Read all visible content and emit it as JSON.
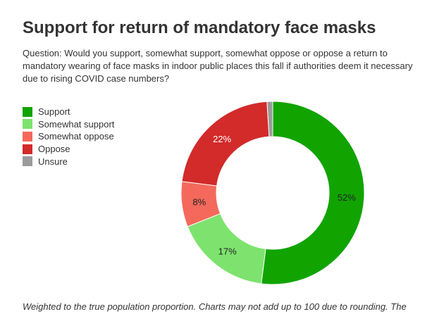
{
  "chart_data": {
    "type": "pie",
    "title": "Support for return of mandatory face masks",
    "subtitle": "Question: Would you support, somewhat support, somewhat oppose or oppose a return to mandatory wearing of face masks in indoor public places this fall if authorities deem it necessary due to rising COVID case numbers?",
    "categories": [
      "Support",
      "Somewhat support",
      "Somewhat oppose",
      "Oppose",
      "Unsure"
    ],
    "values": [
      52,
      17,
      8,
      22,
      1
    ],
    "labels": [
      "52%",
      "17%",
      "8%",
      "22%",
      ""
    ],
    "colors": [
      "#11a400",
      "#7de36e",
      "#f4695b",
      "#d32a2a",
      "#9b9b9b"
    ],
    "label_colors": [
      "#222222",
      "#222222",
      "#222222",
      "#ffffff",
      "#222222"
    ],
    "legend_position": "left",
    "donut": true
  },
  "footnote": "Weighted to the true population proportion. Charts may not add up to 100 due to rounding. The"
}
